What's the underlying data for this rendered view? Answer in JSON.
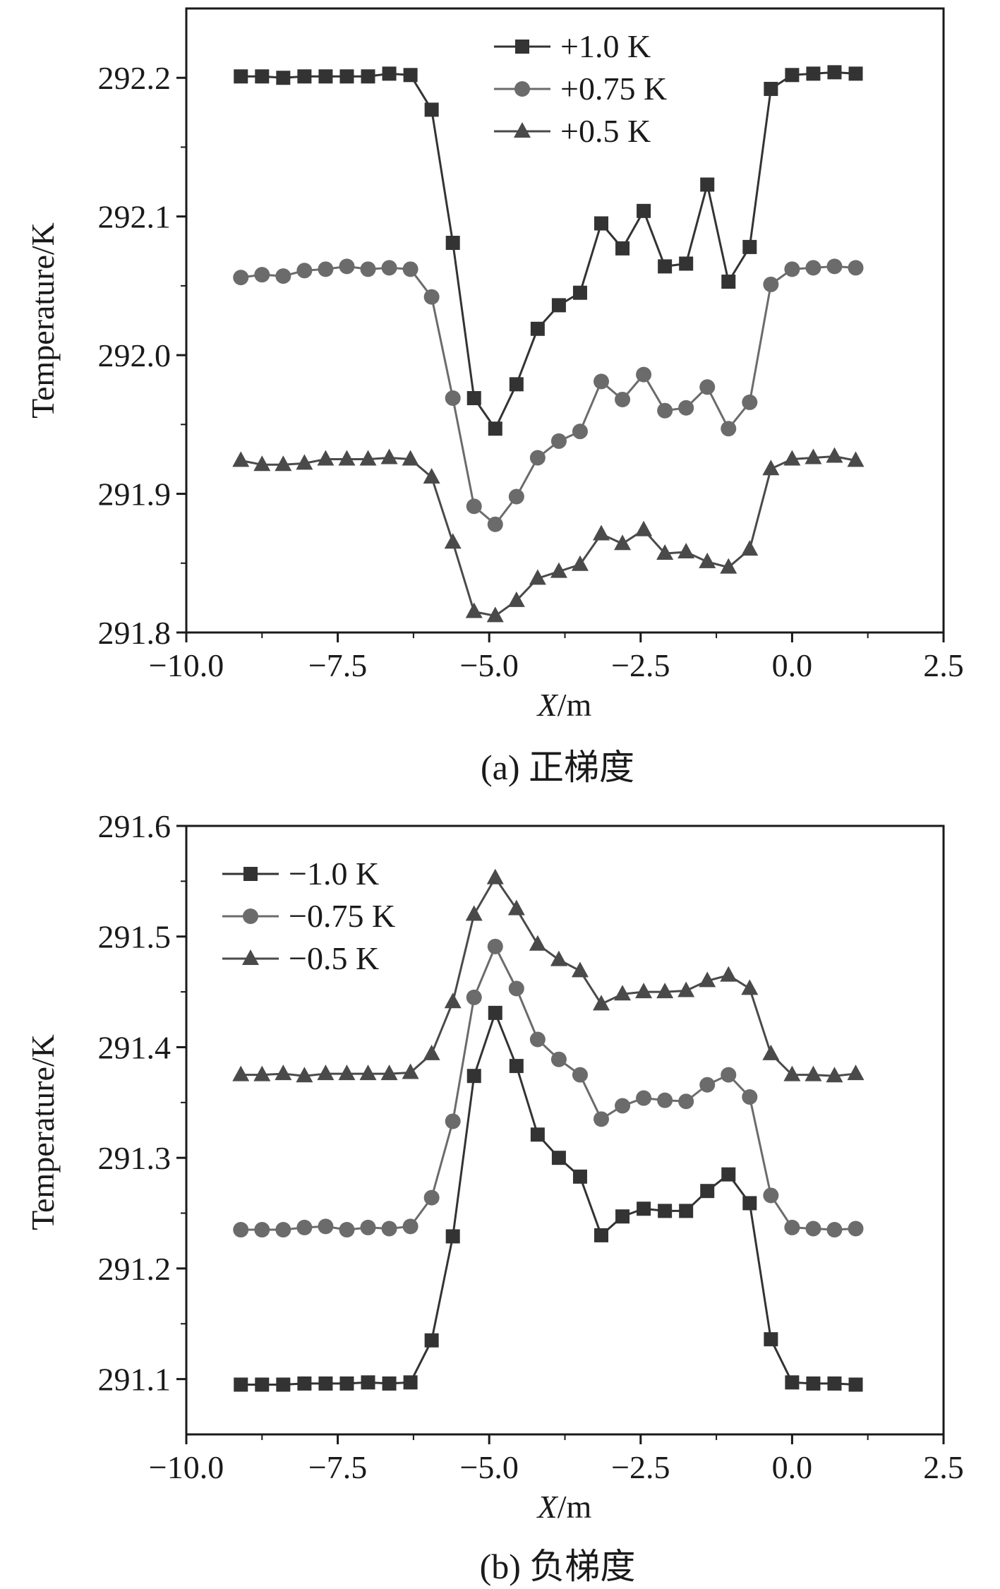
{
  "chart_data": [
    {
      "type": "line",
      "panel": "a",
      "caption": "(a) 正梯度",
      "xlabel_italic": "X",
      "xlabel_unit": "/m",
      "ylabel": "Temperature/K",
      "xlim": [
        -10.0,
        2.5
      ],
      "ylim": [
        291.8,
        292.25
      ],
      "xticks": [
        -10.0,
        -7.5,
        -5.0,
        -2.5,
        0.0,
        2.5
      ],
      "xtick_labels": [
        "−10.0",
        "−7.5",
        "−5.0",
        "−2.5",
        "0.0",
        "2.5"
      ],
      "yticks": [
        291.8,
        291.9,
        292.0,
        292.1,
        292.2
      ],
      "ytick_labels": [
        "291.8",
        "291.9",
        "292.0",
        "292.1",
        "292.2"
      ],
      "legend_position": "top-center",
      "x": [
        -9.1,
        -8.75,
        -8.4,
        -8.05,
        -7.7,
        -7.35,
        -7.0,
        -6.65,
        -6.3,
        -5.95,
        -5.6,
        -5.25,
        -4.9,
        -4.55,
        -4.2,
        -3.85,
        -3.5,
        -3.15,
        -2.8,
        -2.45,
        -2.1,
        -1.75,
        -1.4,
        -1.05,
        -0.7,
        -0.35,
        0.0,
        0.35,
        0.7,
        1.05
      ],
      "series": [
        {
          "name": "+1.0 K",
          "marker": "square",
          "color": "#333333",
          "values": [
            292.201,
            292.201,
            292.2,
            292.201,
            292.201,
            292.201,
            292.201,
            292.203,
            292.202,
            292.177,
            292.081,
            291.969,
            291.947,
            291.979,
            292.019,
            292.036,
            292.045,
            292.095,
            292.077,
            292.104,
            292.064,
            292.066,
            292.123,
            292.053,
            292.078,
            292.192,
            292.202,
            292.203,
            292.204,
            292.203
          ]
        },
        {
          "name": "+0.75 K",
          "marker": "circle",
          "color": "#6b6b6b",
          "values": [
            292.056,
            292.058,
            292.057,
            292.061,
            292.062,
            292.064,
            292.062,
            292.063,
            292.062,
            292.042,
            291.969,
            291.891,
            291.878,
            291.898,
            291.926,
            291.938,
            291.945,
            291.981,
            291.968,
            291.986,
            291.96,
            291.962,
            291.977,
            291.947,
            291.966,
            292.051,
            292.062,
            292.063,
            292.064,
            292.063
          ]
        },
        {
          "name": "+0.5 K",
          "marker": "triangle",
          "color": "#4a4a4a",
          "values": [
            291.924,
            291.921,
            291.921,
            291.922,
            291.925,
            291.925,
            291.925,
            291.926,
            291.925,
            291.912,
            291.865,
            291.815,
            291.812,
            291.823,
            291.839,
            291.844,
            291.849,
            291.871,
            291.864,
            291.874,
            291.857,
            291.858,
            291.851,
            291.847,
            291.86,
            291.918,
            291.925,
            291.926,
            291.927,
            291.924
          ]
        }
      ]
    },
    {
      "type": "line",
      "panel": "b",
      "caption": "(b) 负梯度",
      "xlabel_italic": "X",
      "xlabel_unit": "/m",
      "ylabel": "Temperature/K",
      "xlim": [
        -10.0,
        2.5
      ],
      "ylim": [
        291.05,
        291.6
      ],
      "xticks": [
        -10.0,
        -7.5,
        -5.0,
        -2.5,
        0.0,
        2.5
      ],
      "xtick_labels": [
        "−10.0",
        "−7.5",
        "−5.0",
        "−2.5",
        "0.0",
        "2.5"
      ],
      "yticks": [
        291.1,
        291.2,
        291.3,
        291.4,
        291.5,
        291.6
      ],
      "ytick_labels": [
        "291.1",
        "291.2",
        "291.3",
        "291.4",
        "291.5",
        "291.6"
      ],
      "legend_position": "top-left",
      "x": [
        -9.1,
        -8.75,
        -8.4,
        -8.05,
        -7.7,
        -7.35,
        -7.0,
        -6.65,
        -6.3,
        -5.95,
        -5.6,
        -5.25,
        -4.9,
        -4.55,
        -4.2,
        -3.85,
        -3.5,
        -3.15,
        -2.8,
        -2.45,
        -2.1,
        -1.75,
        -1.4,
        -1.05,
        -0.7,
        -0.35,
        0.0,
        0.35,
        0.7,
        1.05
      ],
      "series": [
        {
          "name": "−1.0 K",
          "marker": "square",
          "color": "#333333",
          "values": [
            291.095,
            291.095,
            291.095,
            291.096,
            291.096,
            291.096,
            291.097,
            291.096,
            291.097,
            291.135,
            291.229,
            291.374,
            291.431,
            291.383,
            291.321,
            291.3,
            291.283,
            291.23,
            291.247,
            291.254,
            291.252,
            291.252,
            291.27,
            291.285,
            291.259,
            291.136,
            291.097,
            291.096,
            291.096,
            291.095
          ]
        },
        {
          "name": "−0.75 K",
          "marker": "circle",
          "color": "#6b6b6b",
          "values": [
            291.235,
            291.235,
            291.235,
            291.237,
            291.238,
            291.235,
            291.237,
            291.236,
            291.238,
            291.264,
            291.333,
            291.445,
            291.491,
            291.453,
            291.407,
            291.389,
            291.375,
            291.335,
            291.347,
            291.354,
            291.352,
            291.351,
            291.366,
            291.375,
            291.355,
            291.266,
            291.237,
            291.236,
            291.235,
            291.236
          ]
        },
        {
          "name": "−0.5 K",
          "marker": "triangle",
          "color": "#4a4a4a",
          "values": [
            291.375,
            291.375,
            291.376,
            291.374,
            291.376,
            291.376,
            291.376,
            291.376,
            291.377,
            291.394,
            291.441,
            291.52,
            291.553,
            291.525,
            291.493,
            291.479,
            291.469,
            291.439,
            291.448,
            291.45,
            291.45,
            291.451,
            291.46,
            291.465,
            291.453,
            291.394,
            291.375,
            291.375,
            291.374,
            291.376
          ]
        }
      ]
    }
  ]
}
